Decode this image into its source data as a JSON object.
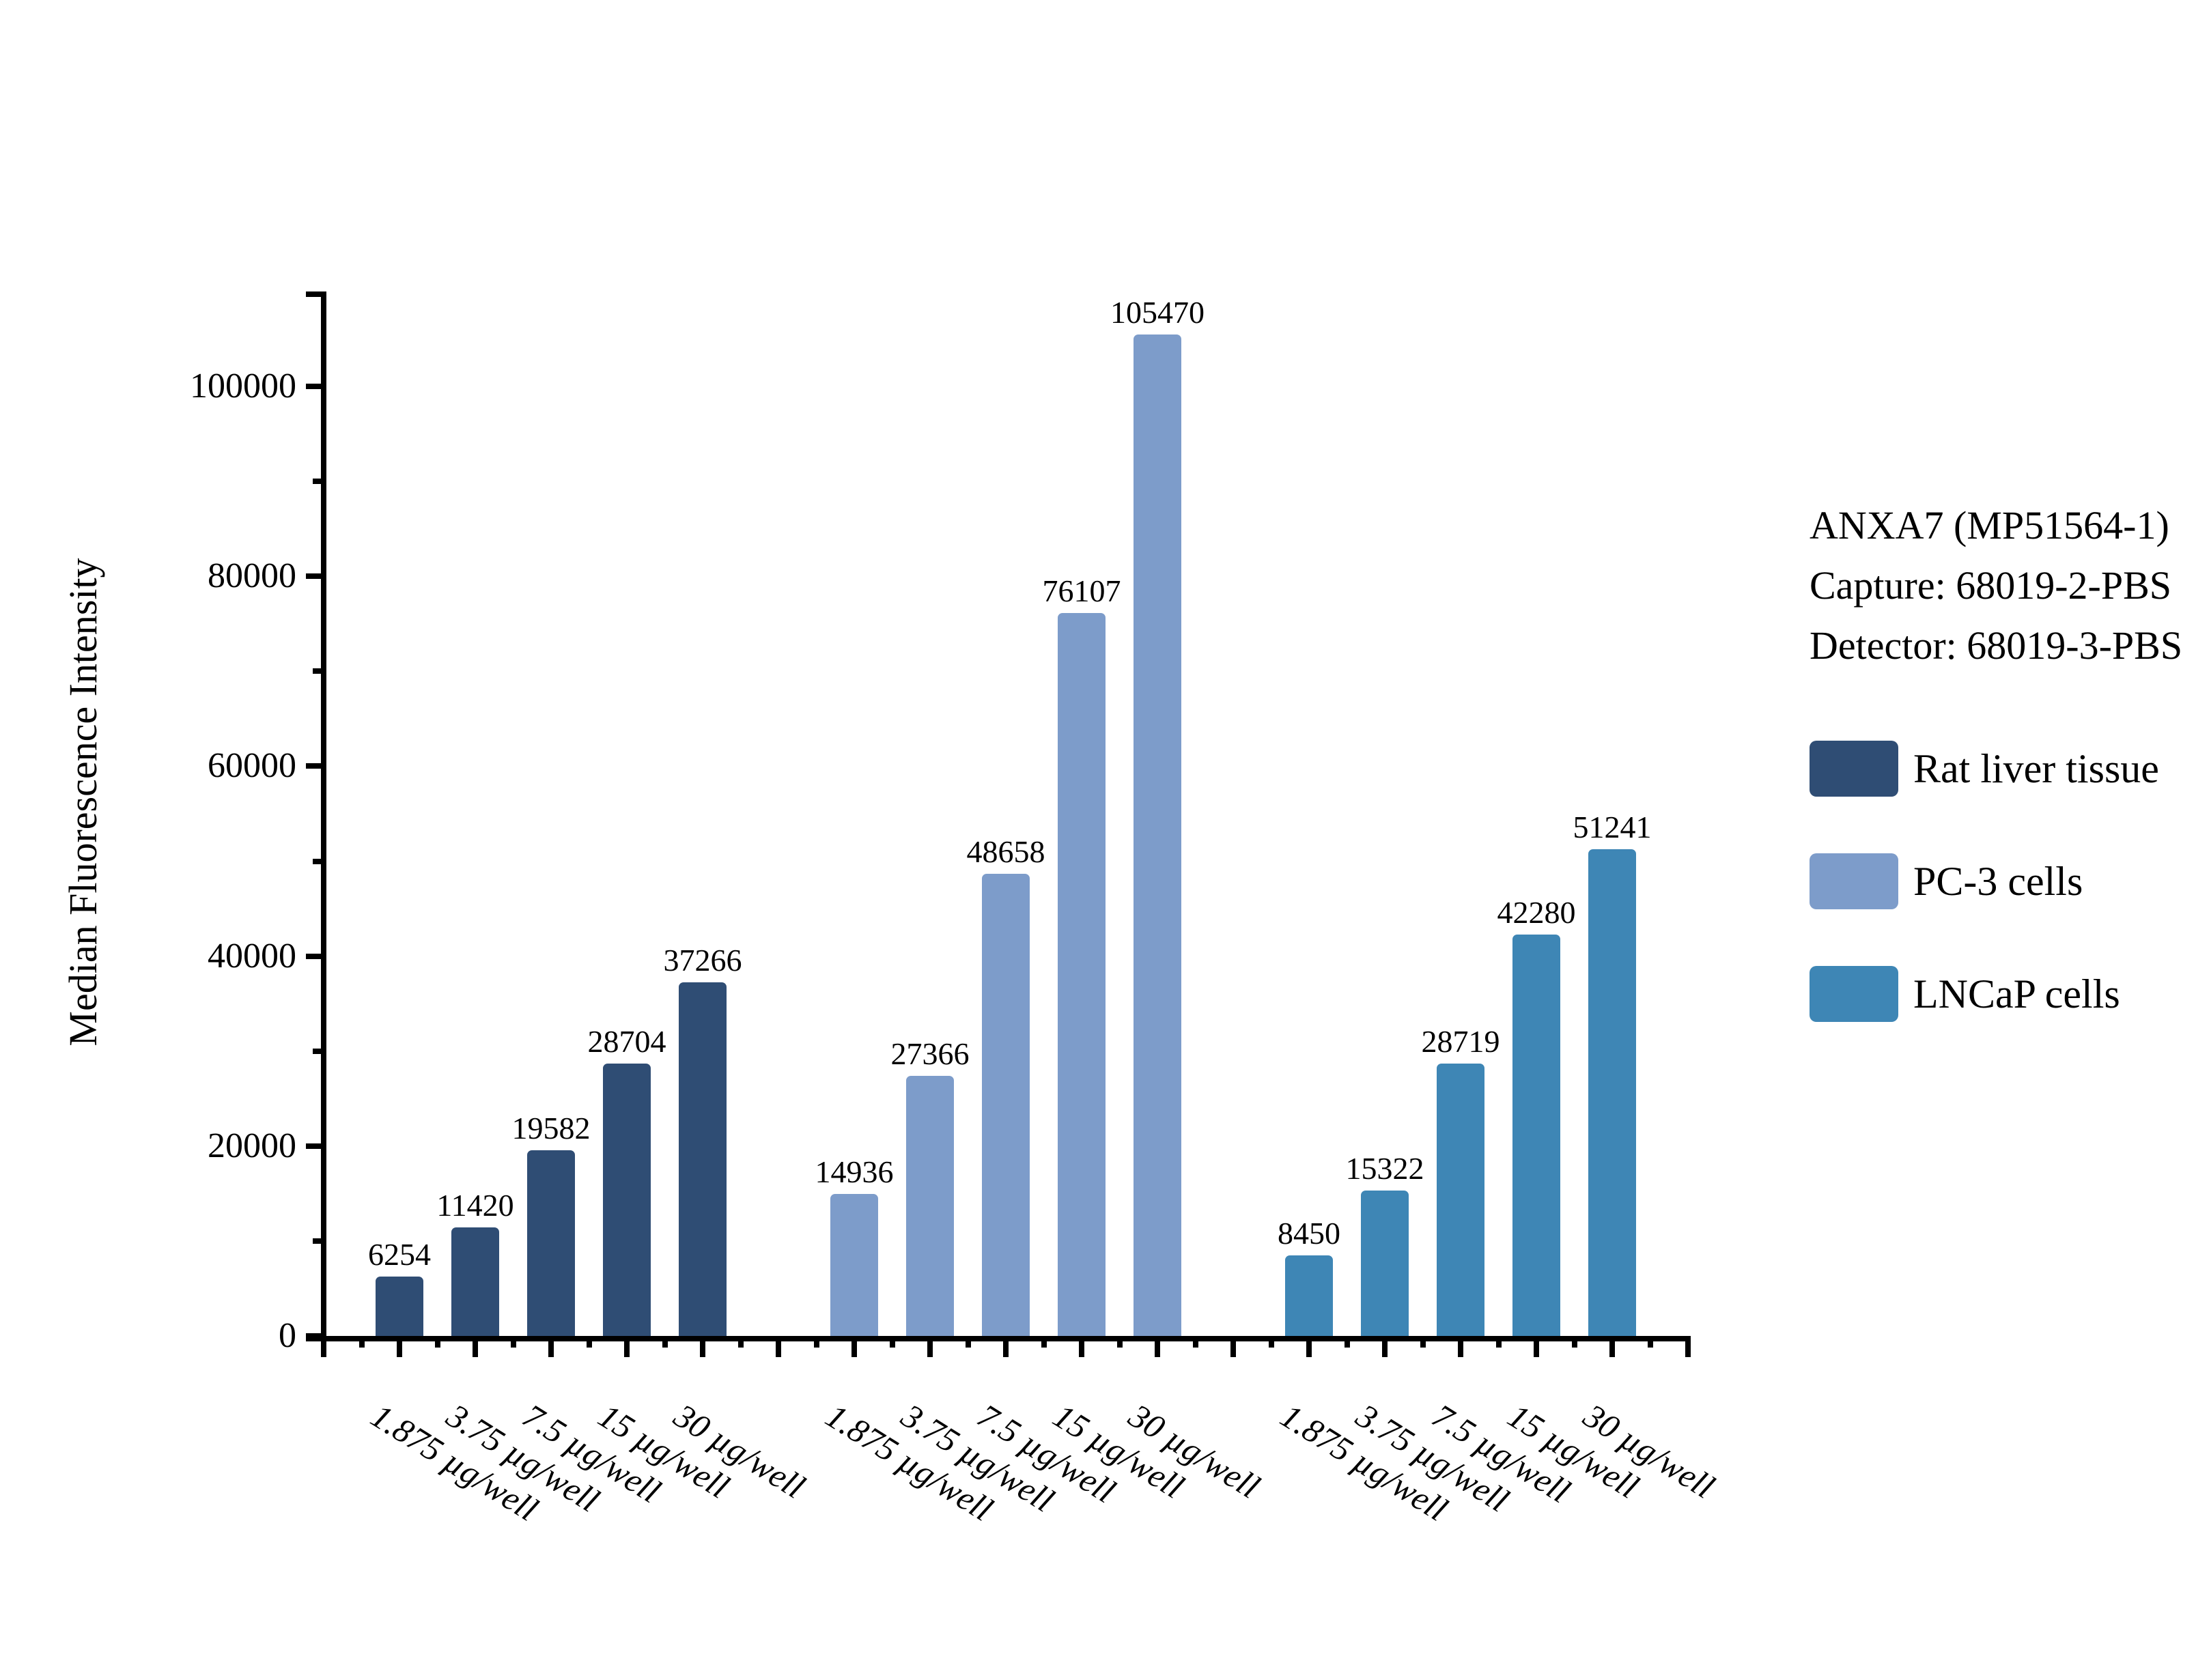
{
  "chart_data": {
    "type": "bar",
    "title": "",
    "xlabel": "",
    "ylabel": "Median Fluorescence Intensity",
    "ylim": [
      0,
      110000
    ],
    "ytick_major_step": 20000,
    "ytick_minor_step": 10000,
    "yticks_major": [
      0,
      20000,
      40000,
      60000,
      80000,
      100000
    ],
    "yticks_minor": [
      10000,
      30000,
      50000,
      70000,
      90000
    ],
    "grid": false,
    "legend_position": "right",
    "bar_value_labels_shown": true,
    "categories": [
      "1.875 µg/well",
      "3.75 µg/well",
      "7.5 µg/well",
      "15 µg/well",
      "30 µg/well"
    ],
    "series": [
      {
        "name": "Rat liver tissue",
        "color": "#2F4D74",
        "values": [
          6254,
          11420,
          19582,
          28704,
          37266
        ]
      },
      {
        "name": "PC-3 cells",
        "color": "#7D9CCA",
        "values": [
          14936,
          27366,
          48658,
          76107,
          105470
        ]
      },
      {
        "name": "LNCaP cells",
        "color": "#3E86B5",
        "values": [
          8450,
          15322,
          28719,
          42280,
          51241
        ]
      }
    ]
  },
  "annotation": {
    "lines": [
      "ANXA7 (MP51564-1)",
      "Capture: 68019-2-PBS",
      "Detector: 68019-3-PBS"
    ]
  },
  "colors": {
    "background": "#FFFFFF",
    "axis": "#000000",
    "text": "#000000"
  }
}
